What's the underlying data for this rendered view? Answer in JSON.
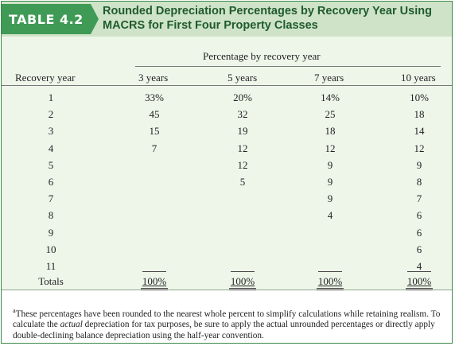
{
  "table": {
    "tag": "TABLE 4.2",
    "title": "Rounded Depreciation Percentages by Recovery Year Using MACRS for First Four Property Classes",
    "group_header": "Percentage by recovery year",
    "row_header": "Recovery year",
    "columns": [
      "3 years",
      "5 years",
      "7 years",
      "10 years"
    ],
    "rows": [
      {
        "year": "1",
        "values": [
          "33%",
          "20%",
          "14%",
          "10%"
        ]
      },
      {
        "year": "2",
        "values": [
          "45",
          "32",
          "25",
          "18"
        ]
      },
      {
        "year": "3",
        "values": [
          "15",
          "19",
          "18",
          "14"
        ]
      },
      {
        "year": "4",
        "values": [
          "7",
          "12",
          "12",
          "12"
        ]
      },
      {
        "year": "5",
        "values": [
          "",
          "12",
          "9",
          "9"
        ]
      },
      {
        "year": "6",
        "values": [
          "",
          "5",
          "9",
          "8"
        ]
      },
      {
        "year": "7",
        "values": [
          "",
          "",
          "9",
          "7"
        ]
      },
      {
        "year": "8",
        "values": [
          "",
          "",
          "4",
          "6"
        ]
      },
      {
        "year": "9",
        "values": [
          "",
          "",
          "",
          "6"
        ]
      },
      {
        "year": "10",
        "values": [
          "",
          "",
          "",
          "6"
        ]
      },
      {
        "year": "11",
        "values": [
          "",
          "",
          "",
          "4"
        ]
      }
    ],
    "totals_label": "Totals",
    "totals": [
      "100%",
      "100%",
      "100%",
      "100%"
    ]
  },
  "footnote": {
    "marker": "a",
    "text_before": "These percentages have been rounded to the nearest whole percent to simplify calculations while retaining realism. To calculate the ",
    "emphasis": "actual",
    "text_after": " depreciation for tax purposes, be sure to apply the actual unrounded percentages or directly apply double-declining balance depreciation using the half-year convention."
  },
  "colors": {
    "tag_green": "#3f9a55",
    "header_band": "#cfe3c8",
    "title_text": "#1f5b2d",
    "body_band": "#eef6ea"
  }
}
